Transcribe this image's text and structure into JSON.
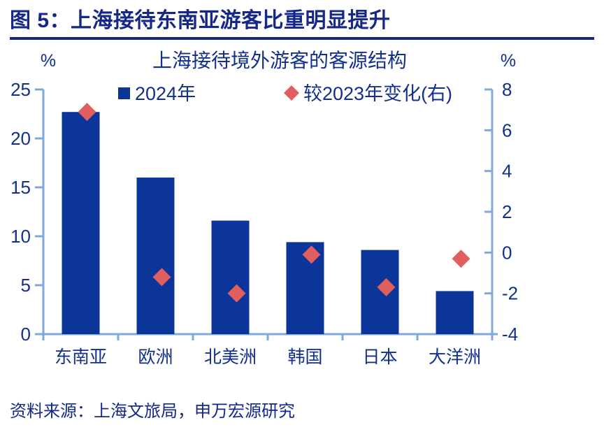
{
  "header": {
    "title": "图 5：上海接待东南亚游客比重明显提升"
  },
  "footer": {
    "source": "资料来源：上海文旅局，申万宏源研究"
  },
  "colors": {
    "navy_text": "#122F8E",
    "bar": "#0C3599",
    "diamond": "#E05E5E",
    "axis_line": "#7FA8DB",
    "rule": "#15288A"
  },
  "chart_data": {
    "type": "bar",
    "title": "上海接待境外游客的客源结构",
    "categories": [
      "东南亚",
      "欧洲",
      "北美洲",
      "韩国",
      "日本",
      "大洋洲"
    ],
    "series": [
      {
        "name": "2024年",
        "type": "bar",
        "axis": "left",
        "values": [
          22.7,
          16.0,
          11.6,
          9.4,
          8.6,
          4.4
        ]
      },
      {
        "name": "较2023年变化(右)",
        "type": "scatter",
        "marker": "diamond",
        "axis": "right",
        "values": [
          6.9,
          -1.2,
          -2.0,
          -0.1,
          -1.7,
          -0.3
        ]
      }
    ],
    "left_axis": {
      "unit": "%",
      "min": 0,
      "max": 25,
      "ticks": [
        0,
        5,
        10,
        15,
        20,
        25
      ]
    },
    "right_axis": {
      "unit": "%",
      "min": -4,
      "max": 8,
      "ticks": [
        -4,
        -2,
        0,
        2,
        4,
        6,
        8
      ]
    },
    "legend_position": "top",
    "grid": false
  }
}
